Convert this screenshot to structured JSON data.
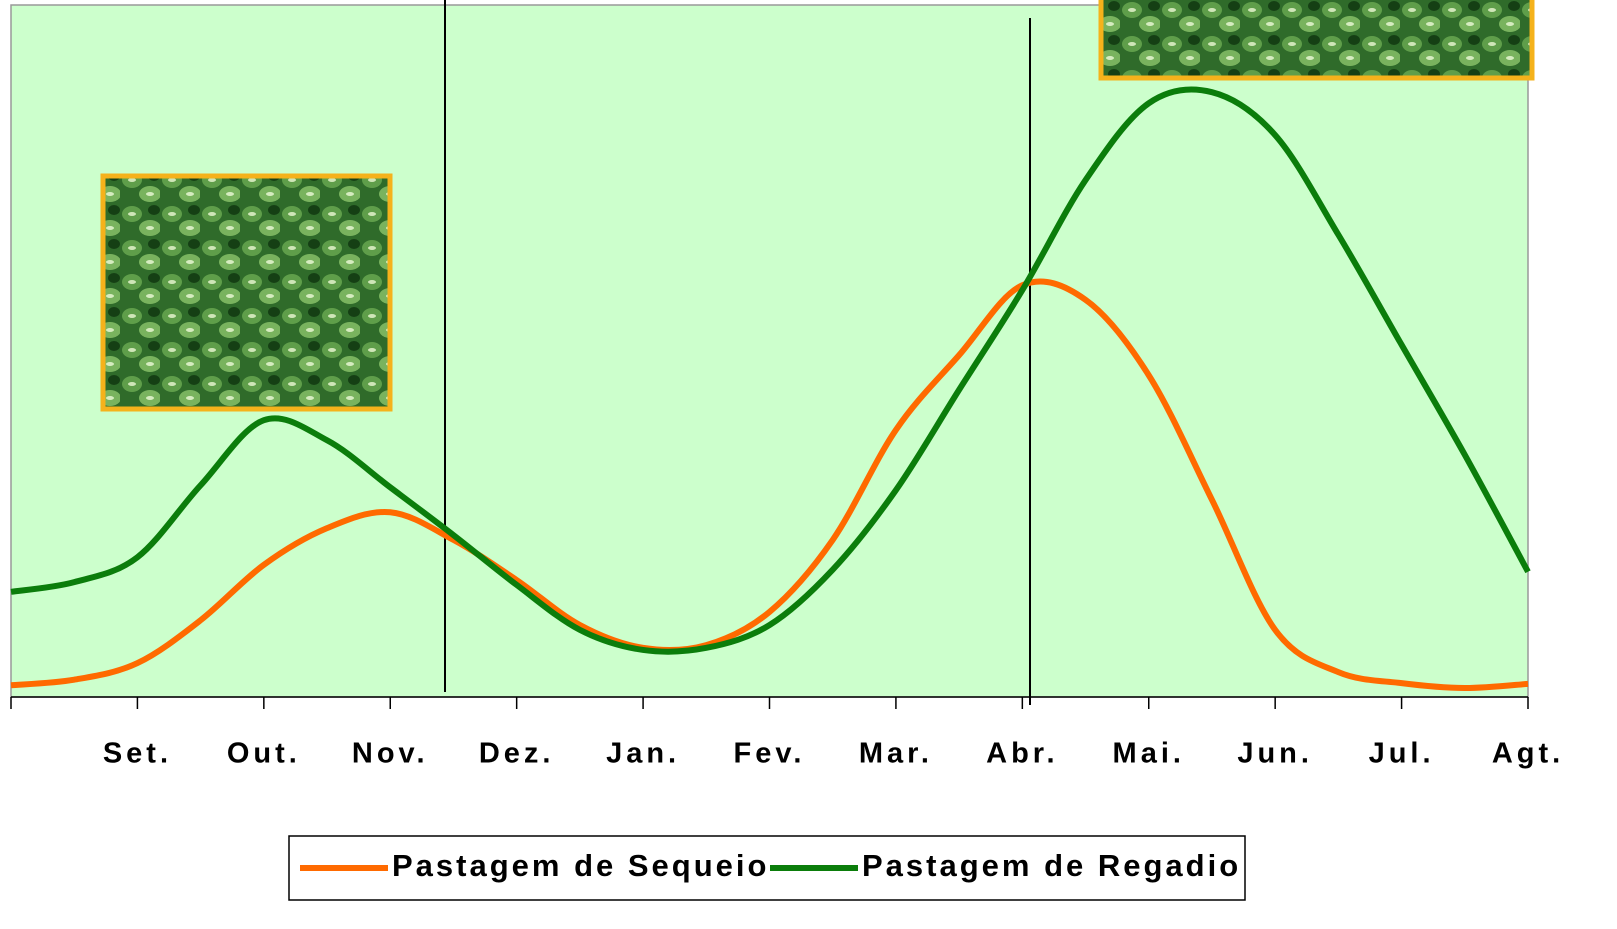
{
  "chart_data": {
    "type": "line",
    "categories": [
      null,
      null,
      "Set.",
      null,
      "Out.",
      null,
      "Nov.",
      null,
      "Dez.",
      null,
      "Jan.",
      null,
      "Fev.",
      null,
      "Mar.",
      null,
      "Abr.",
      null,
      "Mai.",
      null,
      "Jun.",
      null,
      "Jul.",
      null,
      "Agt."
    ],
    "series": [
      {
        "name": "Pastagem de Sequeio",
        "color": "#ff6a00",
        "values": [
          1.7,
          2.5,
          4.9,
          11.1,
          19.1,
          24.4,
          26.7,
          22.7,
          16.9,
          10.4,
          7.1,
          7.5,
          12.3,
          22.7,
          38.6,
          49.4,
          59.5,
          57.4,
          46.5,
          28.5,
          9.7,
          3.6,
          2.0,
          1.3,
          1.9
        ]
      },
      {
        "name": "Pastagem de Regadio",
        "color": "#0b7d0b",
        "values": [
          15.2,
          16.6,
          20.2,
          30.6,
          40.0,
          37.1,
          30.3,
          23.4,
          16.2,
          9.7,
          6.8,
          7.1,
          10.4,
          18.4,
          29.9,
          44.4,
          58.8,
          74.7,
          85.8,
          87.4,
          81.2,
          66.8,
          50.9,
          35.0,
          18.1
        ]
      }
    ],
    "ylim": [
      0,
      100
    ]
  }
}
